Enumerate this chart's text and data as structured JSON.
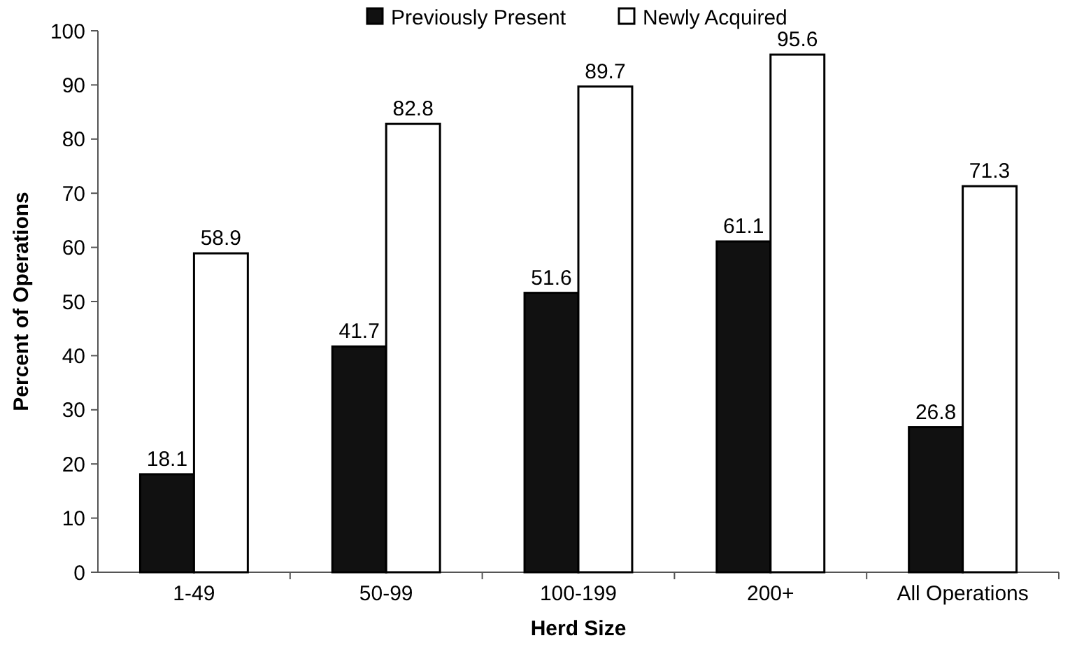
{
  "chart_data": {
    "type": "bar",
    "xlabel": "Herd Size",
    "ylabel": "Percent of Operations",
    "categories": [
      "1-49",
      "50-99",
      "100-199",
      "200+",
      "All Operations"
    ],
    "series": [
      {
        "name": "Previously Present",
        "color": "#111111",
        "values": [
          18.1,
          41.7,
          51.6,
          61.1,
          26.8
        ]
      },
      {
        "name": "Newly Acquired",
        "color": "#ffffff",
        "values": [
          58.9,
          82.8,
          89.7,
          95.6,
          71.3
        ]
      }
    ],
    "ylim": [
      0,
      100
    ],
    "yticks": [
      0,
      10,
      20,
      30,
      40,
      50,
      60,
      70,
      80,
      90,
      100
    ],
    "grid": false,
    "legend": "top",
    "data_labels": true
  }
}
